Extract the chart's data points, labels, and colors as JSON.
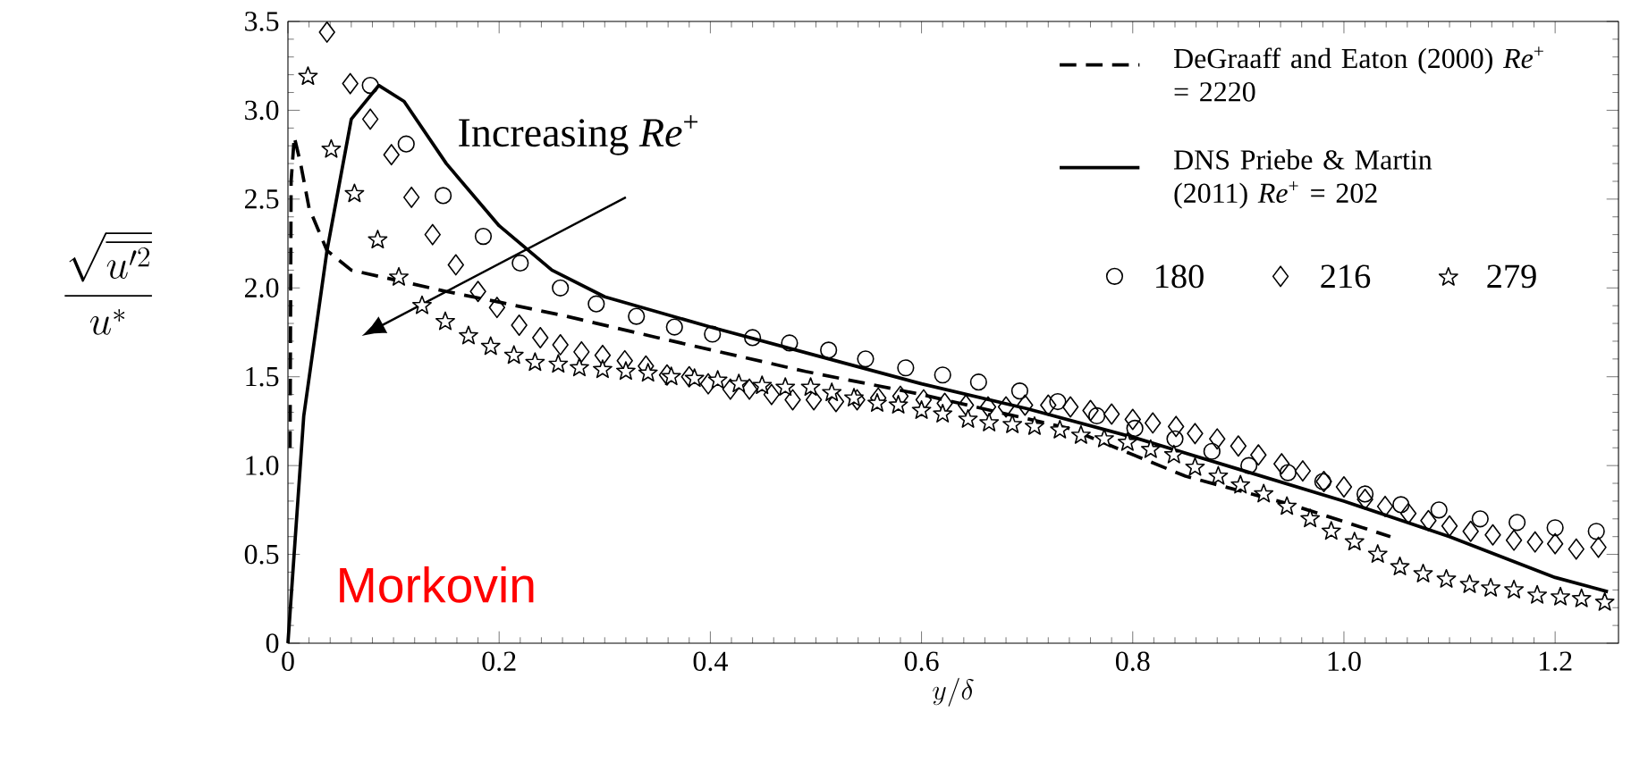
{
  "chart_data": {
    "type": "line",
    "xlabel": "y/\\delta",
    "ylabel": "\\frac{\\sqrt{\\overline{u'^2}}}{u^*}",
    "annotations": [
      "Increasing *Re*$^{+}$",
      "Morkovin"
    ],
    "xlim": [
      0,
      1.26
    ],
    "ylim": [
      0,
      3.5
    ],
    "xticks": [
      0,
      0.2,
      0.4,
      0.6,
      0.8,
      {
        "value": 1,
        "label": "1.0"
      },
      1.2
    ],
    "yticks": [
      0,
      0.5,
      {
        "value": 1,
        "label": "1.0"
      },
      1.5,
      {
        "value": 2,
        "label": "2.0"
      },
      2.5,
      {
        "value": 3,
        "label": "3.0"
      },
      3.5
    ],
    "grid": false,
    "legend": "top right",
    "series": [
      {
        "name": "DeGraaff and Eaton (2000) *Re*$^{+}$ = 2220",
        "line_style": "dashed",
        "color": "#000000",
        "x": [
          0.002,
          0.003,
          0.006,
          0.012,
          0.02,
          0.037,
          0.06,
          0.105,
          0.15,
          0.2,
          0.264,
          0.35,
          0.49,
          0.6,
          0.739,
          0.85,
          0.95,
          1.044
        ],
        "values": [
          1.1,
          2.6,
          2.85,
          2.7,
          2.45,
          2.21,
          2.1,
          2.04,
          1.98,
          1.92,
          1.84,
          1.72,
          1.53,
          1.4,
          1.21,
          0.94,
          0.78,
          0.6
        ]
      },
      {
        "name": "DNS Priebe & Martin (2011) *Re*$^{+}$ = 202",
        "line_style": "solid",
        "color": "#000000",
        "x": [
          0,
          0.015,
          0.037,
          0.06,
          0.086,
          0.11,
          0.15,
          0.2,
          0.25,
          0.3,
          0.4,
          0.5,
          0.6,
          0.7,
          0.8,
          0.9,
          1.0,
          1.1,
          1.2,
          1.25
        ],
        "values": [
          0,
          1.28,
          2.21,
          2.95,
          3.14,
          3.05,
          2.7,
          2.35,
          2.1,
          1.95,
          1.78,
          1.62,
          1.46,
          1.32,
          1.16,
          0.98,
          0.8,
          0.6,
          0.37,
          0.29
        ]
      },
      {
        "name": "180",
        "type": "scatter",
        "marker": "circle",
        "color": "#000000",
        "x": [
          0.078,
          0.112,
          0.147,
          0.185,
          0.22,
          0.258,
          0.292,
          0.33,
          0.366,
          0.402,
          0.44,
          0.475,
          0.512,
          0.547,
          0.585,
          0.62,
          0.654,
          0.693,
          0.729,
          0.766,
          0.802,
          0.84,
          0.875,
          0.91,
          0.947,
          0.98,
          1.02,
          1.054,
          1.09,
          1.129,
          1.164,
          1.2,
          1.239
        ],
        "values": [
          3.14,
          2.81,
          2.52,
          2.29,
          2.14,
          2.0,
          1.91,
          1.84,
          1.78,
          1.74,
          1.72,
          1.69,
          1.65,
          1.6,
          1.55,
          1.51,
          1.47,
          1.42,
          1.36,
          1.28,
          1.21,
          1.15,
          1.08,
          1.0,
          0.96,
          0.91,
          0.84,
          0.78,
          0.75,
          0.7,
          0.68,
          0.65,
          0.63
        ]
      },
      {
        "name": "216",
        "type": "scatter",
        "marker": "diamond",
        "color": "#000000",
        "x": [
          0.037,
          0.059,
          0.078,
          0.098,
          0.117,
          0.137,
          0.159,
          0.18,
          0.198,
          0.219,
          0.239,
          0.258,
          0.278,
          0.298,
          0.319,
          0.339,
          0.359,
          0.38,
          0.398,
          0.419,
          0.437,
          0.458,
          0.478,
          0.498,
          0.519,
          0.539,
          0.559,
          0.58,
          0.602,
          0.622,
          0.642,
          0.663,
          0.68,
          0.698,
          0.72,
          0.741,
          0.76,
          0.78,
          0.8,
          0.819,
          0.841,
          0.859,
          0.88,
          0.9,
          0.919,
          0.941,
          0.961,
          0.981,
          1.0,
          1.02,
          1.039,
          1.061,
          1.08,
          1.1,
          1.12,
          1.141,
          1.161,
          1.181,
          1.2,
          1.22,
          1.241
        ],
        "values": [
          3.44,
          3.15,
          2.95,
          2.75,
          2.51,
          2.3,
          2.13,
          1.98,
          1.89,
          1.79,
          1.72,
          1.68,
          1.64,
          1.62,
          1.59,
          1.56,
          1.51,
          1.5,
          1.46,
          1.43,
          1.43,
          1.4,
          1.37,
          1.37,
          1.36,
          1.37,
          1.38,
          1.39,
          1.37,
          1.35,
          1.34,
          1.33,
          1.33,
          1.34,
          1.34,
          1.33,
          1.31,
          1.29,
          1.26,
          1.24,
          1.22,
          1.18,
          1.15,
          1.11,
          1.06,
          1.01,
          0.97,
          0.91,
          0.88,
          0.81,
          0.77,
          0.73,
          0.69,
          0.66,
          0.63,
          0.61,
          0.58,
          0.57,
          0.56,
          0.53,
          0.54
        ]
      },
      {
        "name": "279",
        "type": "scatter",
        "marker": "star",
        "color": "#000000",
        "x": [
          0.019,
          0.041,
          0.063,
          0.085,
          0.105,
          0.127,
          0.149,
          0.171,
          0.192,
          0.214,
          0.234,
          0.256,
          0.276,
          0.298,
          0.32,
          0.341,
          0.363,
          0.385,
          0.407,
          0.427,
          0.449,
          0.471,
          0.495,
          0.515,
          0.536,
          0.558,
          0.578,
          0.6,
          0.62,
          0.644,
          0.664,
          0.686,
          0.707,
          0.731,
          0.751,
          0.773,
          0.795,
          0.817,
          0.839,
          0.859,
          0.881,
          0.902,
          0.924,
          0.946,
          0.968,
          0.988,
          1.01,
          1.032,
          1.053,
          1.075,
          1.097,
          1.119,
          1.139,
          1.161,
          1.183,
          1.205,
          1.225,
          1.247
        ],
        "values": [
          3.19,
          2.78,
          2.53,
          2.27,
          2.06,
          1.9,
          1.81,
          1.73,
          1.67,
          1.62,
          1.58,
          1.57,
          1.55,
          1.54,
          1.53,
          1.52,
          1.5,
          1.49,
          1.48,
          1.46,
          1.45,
          1.44,
          1.44,
          1.41,
          1.38,
          1.35,
          1.34,
          1.31,
          1.29,
          1.26,
          1.24,
          1.23,
          1.22,
          1.2,
          1.17,
          1.15,
          1.13,
          1.09,
          1.06,
          0.99,
          0.94,
          0.89,
          0.84,
          0.77,
          0.7,
          0.63,
          0.57,
          0.5,
          0.43,
          0.39,
          0.36,
          0.33,
          0.31,
          0.3,
          0.27,
          0.26,
          0.25,
          0.23
        ]
      }
    ]
  }
}
